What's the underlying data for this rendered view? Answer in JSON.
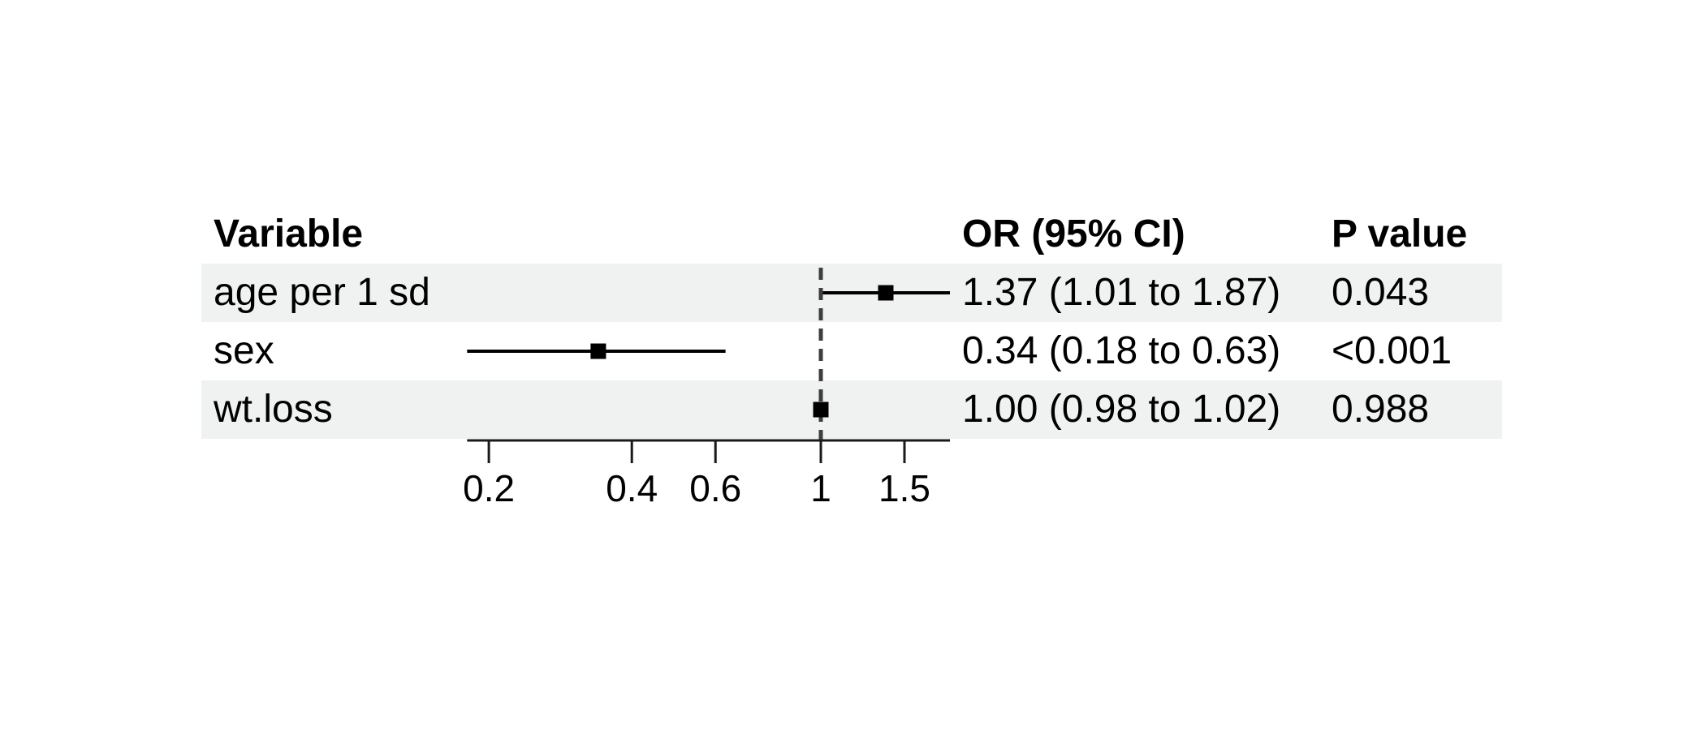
{
  "colors": {
    "background": "#ffffff",
    "stripe": "#eff2f0",
    "text": "#000000",
    "line": "#1a1a1a",
    "reference_line": "#3d3d3d"
  },
  "chart_data": {
    "type": "forest",
    "columns": {
      "variable": "Variable",
      "or": "OR (95% CI)",
      "p": "P value"
    },
    "rows": [
      {
        "variable": "age per 1 sd",
        "or": 1.37,
        "low": 1.01,
        "high": 1.87,
        "or_ci_label": "1.37 (1.01 to 1.87)",
        "p_label": "0.043"
      },
      {
        "variable": "sex",
        "or": 0.34,
        "low": 0.18,
        "high": 0.63,
        "or_ci_label": "0.34 (0.18 to 0.63)",
        "p_label": "<0.001"
      },
      {
        "variable": "wt.loss",
        "or": 1.0,
        "low": 0.98,
        "high": 1.02,
        "or_ci_label": "1.00 (0.98 to 1.02)",
        "p_label": "0.988"
      }
    ],
    "x_axis": {
      "scale": "log10",
      "range": [
        0.18,
        1.87
      ],
      "ticks": [
        0.2,
        0.4,
        0.6,
        1,
        1.5
      ],
      "tick_labels": [
        "0.2",
        "0.4",
        "0.6",
        "1",
        "1.5"
      ]
    },
    "reference_line": 1,
    "legend": "none",
    "grid": "off"
  }
}
